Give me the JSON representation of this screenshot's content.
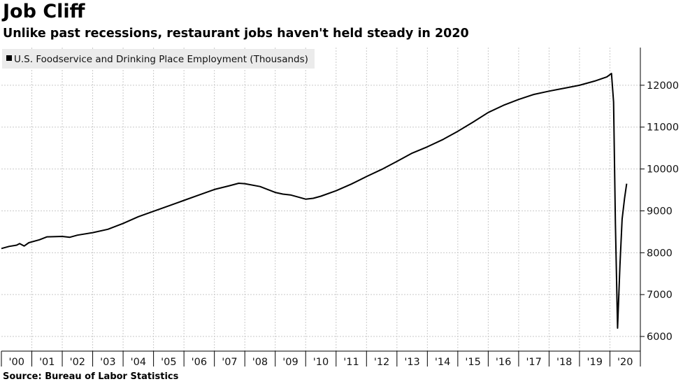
{
  "header": {
    "title": "Job Cliff",
    "subtitle": "Unlike past recessions, restaurant jobs haven't held steady in 2020"
  },
  "footer": {
    "source": "Source: Bureau of Labor Statistics"
  },
  "colors": {
    "line": "#000000",
    "grid": "#c9c9c9",
    "legend_bg": "#ebebeb"
  },
  "chart_data": {
    "type": "line",
    "title": "Job Cliff",
    "subtitle": "Unlike past recessions, restaurant jobs haven't held steady in 2020",
    "xlabel": "",
    "ylabel": "",
    "ylim": [
      5650,
      12900
    ],
    "yticks": [
      6000,
      7000,
      8000,
      9000,
      10000,
      11000,
      12000
    ],
    "xlim": [
      2000.0,
      2021.0
    ],
    "xticks": [
      {
        "label": "'00",
        "x": 2000
      },
      {
        "label": "'01",
        "x": 2001
      },
      {
        "label": "'02",
        "x": 2002
      },
      {
        "label": "'03",
        "x": 2003
      },
      {
        "label": "'04",
        "x": 2004
      },
      {
        "label": "'05",
        "x": 2005
      },
      {
        "label": "'06",
        "x": 2006
      },
      {
        "label": "'07",
        "x": 2007
      },
      {
        "label": "'08",
        "x": 2008
      },
      {
        "label": "'09",
        "x": 2009
      },
      {
        "label": "'10",
        "x": 2010
      },
      {
        "label": "'11",
        "x": 2011
      },
      {
        "label": "'12",
        "x": 2012
      },
      {
        "label": "'13",
        "x": 2013
      },
      {
        "label": "'14",
        "x": 2014
      },
      {
        "label": "'15",
        "x": 2015
      },
      {
        "label": "'16",
        "x": 2016
      },
      {
        "label": "'17",
        "x": 2017
      },
      {
        "label": "'18",
        "x": 2018
      },
      {
        "label": "'19",
        "x": 2019
      },
      {
        "label": "'20",
        "x": 2020
      }
    ],
    "grid": true,
    "legend_position": "top-left",
    "series": [
      {
        "name": "U.S. Foodservice and Drinking Place Employment (Thousands)",
        "points": [
          [
            2000.0,
            8100
          ],
          [
            2000.25,
            8150
          ],
          [
            2000.5,
            8180
          ],
          [
            2000.6,
            8220
          ],
          [
            2000.75,
            8160
          ],
          [
            2000.9,
            8240
          ],
          [
            2001.25,
            8310
          ],
          [
            2001.5,
            8380
          ],
          [
            2002.0,
            8390
          ],
          [
            2002.25,
            8370
          ],
          [
            2002.5,
            8420
          ],
          [
            2003.0,
            8480
          ],
          [
            2003.5,
            8560
          ],
          [
            2004.0,
            8700
          ],
          [
            2004.5,
            8860
          ],
          [
            2005.0,
            8990
          ],
          [
            2005.5,
            9120
          ],
          [
            2006.0,
            9250
          ],
          [
            2006.5,
            9380
          ],
          [
            2007.0,
            9510
          ],
          [
            2007.5,
            9600
          ],
          [
            2007.8,
            9660
          ],
          [
            2008.0,
            9650
          ],
          [
            2008.5,
            9580
          ],
          [
            2009.0,
            9440
          ],
          [
            2009.25,
            9400
          ],
          [
            2009.5,
            9380
          ],
          [
            2009.75,
            9330
          ],
          [
            2010.0,
            9280
          ],
          [
            2010.25,
            9300
          ],
          [
            2010.5,
            9350
          ],
          [
            2011.0,
            9480
          ],
          [
            2011.5,
            9640
          ],
          [
            2012.0,
            9820
          ],
          [
            2012.5,
            9990
          ],
          [
            2013.0,
            10180
          ],
          [
            2013.5,
            10380
          ],
          [
            2014.0,
            10530
          ],
          [
            2014.5,
            10700
          ],
          [
            2015.0,
            10900
          ],
          [
            2015.5,
            11120
          ],
          [
            2016.0,
            11350
          ],
          [
            2016.5,
            11520
          ],
          [
            2017.0,
            11660
          ],
          [
            2017.5,
            11780
          ],
          [
            2018.0,
            11860
          ],
          [
            2018.5,
            11930
          ],
          [
            2019.0,
            12000
          ],
          [
            2019.5,
            12100
          ],
          [
            2019.9,
            12200
          ],
          [
            2020.05,
            12280
          ],
          [
            2020.12,
            11600
          ],
          [
            2020.18,
            8700
          ],
          [
            2020.25,
            6200
          ],
          [
            2020.33,
            7700
          ],
          [
            2020.4,
            8800
          ],
          [
            2020.48,
            9300
          ],
          [
            2020.55,
            9650
          ]
        ]
      }
    ]
  }
}
